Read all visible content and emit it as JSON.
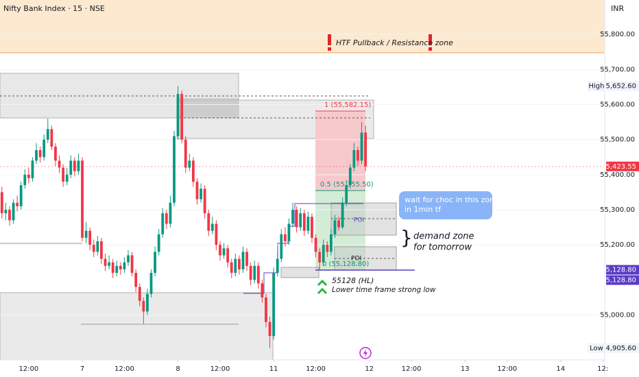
{
  "chart_data": {
    "type": "candlestick",
    "title": "Nifty Bank Index · 15 · NSE",
    "currency": "INR",
    "up_color": "#089981",
    "down_color": "#f23645",
    "xlim": [
      -0.5,
      157.5
    ],
    "xticks": [
      {
        "value": 7,
        "label": "12:00"
      },
      {
        "value": 21,
        "label": "7"
      },
      {
        "value": 32,
        "label": "12:00"
      },
      {
        "value": 46,
        "label": "8"
      },
      {
        "value": 57,
        "label": "12:00"
      },
      {
        "value": 71,
        "label": "11"
      },
      {
        "value": 82,
        "label": "12:00"
      },
      {
        "value": 96,
        "label": "12"
      },
      {
        "value": 107,
        "label": "12:00"
      },
      {
        "value": 121,
        "label": "13"
      },
      {
        "value": 132,
        "label": "12:00"
      },
      {
        "value": 146,
        "label": "14"
      },
      {
        "value": 157,
        "label": "12:"
      }
    ],
    "ylim": [
      54872,
      55898
    ],
    "yticks": [
      {
        "value": 55800,
        "label": "55,800.00"
      },
      {
        "value": 55700,
        "label": "55,700.00"
      },
      {
        "value": 55600,
        "label": "55,600.00"
      },
      {
        "value": 55500,
        "label": "55,500.00"
      },
      {
        "value": 55400,
        "label": "55,400.00"
      },
      {
        "value": 55300,
        "label": "55,300.00"
      },
      {
        "value": 55200,
        "label": "55,200.00"
      },
      {
        "value": 55000,
        "label": "55,000.00"
      }
    ],
    "price_labels": [
      {
        "tag": "High",
        "value": 55652.6,
        "label": "55,652.60",
        "color": "#f0f3fa"
      },
      {
        "value": 55423.55,
        "label": "55,423.55",
        "color": "#f23645"
      },
      {
        "value": 55128.8,
        "label": "55,128.80",
        "color": "#5b3cc4"
      },
      {
        "value": 55128.8,
        "label": "55,128.80",
        "color": "#5b3cc4"
      },
      {
        "tag": "Low",
        "value": 54905.6,
        "label": "54,905.60",
        "color": "#f0f3fa"
      }
    ],
    "open": [
      55350,
      55290,
      55300,
      55270,
      55320,
      55310,
      55370,
      55400,
      55390,
      55440,
      55470,
      55450,
      55500,
      55530,
      55480,
      55440,
      55420,
      55380,
      55400,
      55440,
      55410,
      55440,
      55220,
      55240,
      55200,
      55180,
      55210,
      55160,
      55140,
      55150,
      55120,
      55140,
      55130,
      55150,
      55170,
      55120,
      55080,
      55040,
      55010,
      55060,
      55120,
      55180,
      55230,
      55290,
      55260,
      55320,
      55510,
      55630,
      55500,
      55420,
      55440,
      55380,
      55330,
      55360,
      55290,
      55240,
      55260,
      55200,
      55170,
      55190,
      55150,
      55120,
      55160,
      55130,
      55180,
      55140,
      55100,
      55140,
      55090,
      55050,
      54980,
      54940,
      55120,
      55160,
      55230,
      55210,
      55260,
      55300,
      55250,
      55290,
      55240,
      55280,
      55220,
      55180,
      55150,
      55200,
      55180,
      55230,
      55270,
      55250,
      55320,
      55370,
      55420,
      55470,
      55440,
      55520
    ],
    "high": [
      55365,
      55320,
      55310,
      55330,
      55340,
      55380,
      55415,
      55420,
      55450,
      55490,
      55480,
      55515,
      55560,
      55540,
      55490,
      55455,
      55430,
      55420,
      55455,
      55450,
      55460,
      55450,
      55265,
      55250,
      55215,
      55225,
      55220,
      55175,
      55170,
      55160,
      55155,
      55150,
      55165,
      55185,
      55180,
      55130,
      55090,
      55050,
      55075,
      55130,
      55195,
      55245,
      55305,
      55300,
      55340,
      55525,
      55652.6,
      55640,
      55510,
      55460,
      55450,
      55390,
      55375,
      55370,
      55300,
      55280,
      55270,
      55210,
      55205,
      55200,
      55160,
      55175,
      55170,
      55195,
      55190,
      55150,
      55155,
      55150,
      55100,
      55060,
      54995,
      55135,
      55180,
      55245,
      55250,
      55275,
      55320,
      55310,
      55305,
      55300,
      55295,
      55290,
      55230,
      55190,
      55215,
      55210,
      55245,
      55285,
      55280,
      55335,
      55385,
      55430,
      55490,
      55480,
      55550,
      55540
    ],
    "low": [
      55275,
      55270,
      55255,
      55260,
      55295,
      55300,
      55360,
      55375,
      55380,
      55430,
      55435,
      55440,
      55490,
      55470,
      55425,
      55405,
      55365,
      55370,
      55390,
      55395,
      55400,
      55210,
      55205,
      55185,
      55165,
      55170,
      55145,
      55125,
      55130,
      55105,
      55110,
      55115,
      55120,
      55140,
      55110,
      55065,
      55025,
      54975,
      55000,
      55050,
      55110,
      55170,
      55220,
      55245,
      55250,
      55310,
      55500,
      55490,
      55405,
      55410,
      55365,
      55315,
      55320,
      55275,
      55225,
      55230,
      55185,
      55155,
      55160,
      55135,
      55105,
      55110,
      55115,
      55120,
      55125,
      55085,
      55090,
      55075,
      55035,
      54965,
      54905.6,
      54930,
      55110,
      55150,
      55195,
      55200,
      55250,
      55235,
      55240,
      55225,
      55230,
      55205,
      55165,
      55130,
      55140,
      55165,
      55170,
      55220,
      55240,
      55245,
      55310,
      55360,
      55410,
      55425,
      55430,
      55410
    ],
    "close": [
      55290,
      55300,
      55270,
      55320,
      55310,
      55370,
      55400,
      55390,
      55440,
      55470,
      55450,
      55500,
      55530,
      55480,
      55440,
      55420,
      55380,
      55400,
      55440,
      55410,
      55440,
      55220,
      55240,
      55200,
      55180,
      55210,
      55160,
      55140,
      55150,
      55120,
      55140,
      55130,
      55150,
      55170,
      55120,
      55080,
      55040,
      55010,
      55060,
      55120,
      55180,
      55230,
      55290,
      55260,
      55320,
      55510,
      55630,
      55500,
      55420,
      55440,
      55380,
      55330,
      55360,
      55290,
      55240,
      55260,
      55200,
      55170,
      55190,
      55150,
      55120,
      55160,
      55130,
      55180,
      55140,
      55100,
      55140,
      55090,
      55050,
      54980,
      54940,
      55120,
      55160,
      55230,
      55210,
      55260,
      55300,
      55250,
      55290,
      55240,
      55280,
      55220,
      55180,
      55150,
      55200,
      55180,
      55230,
      55270,
      55250,
      55320,
      55370,
      55420,
      55470,
      55440,
      55520,
      55423.55
    ],
    "annotations": {
      "zone": "HTF Pullback / Resistance zone",
      "fib_top": "1 (55,582.15)",
      "fib_mid": "0.5 (55,355.50)",
      "fib_bottom": "0 (55,128.80)",
      "poi_1": "POI",
      "poi_2": "POI",
      "callout": [
        "wait for choc in this zone",
        "in 1min tf"
      ],
      "demand": [
        "demand zone",
        "for tomorrow"
      ],
      "hl": "55128 (HL)",
      "strong_low": "Lower time frame strong low"
    }
  }
}
